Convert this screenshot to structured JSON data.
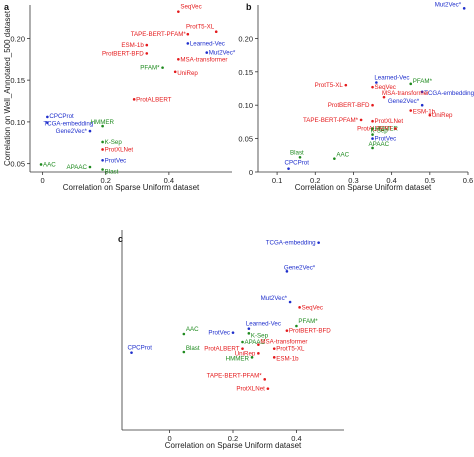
{
  "colors": {
    "red": "#e41a1c",
    "blue": "#1f2fcc",
    "green": "#1e8a1e",
    "axis": "#333333"
  },
  "chart_data": [
    {
      "panel": "a",
      "type": "scatter",
      "xlabel": "Correlation on Sparse Uniform dataset",
      "ylabel": "Correlation on Well_Annotated_500 dataset",
      "xlim": [
        -0.04,
        0.6
      ],
      "ylim": [
        0.04,
        0.24
      ],
      "xticks": [
        0,
        0.2,
        0.4
      ],
      "xtick_labels": [
        "0",
        "0.2",
        "0.4"
      ],
      "yticks": [
        0.05,
        0.1,
        0.15,
        0.2
      ],
      "ytick_labels": [
        "0.05",
        "0.10",
        "0.15",
        "0.20"
      ],
      "grid": false,
      "points": [
        {
          "label": "SeqVec",
          "x": 0.43,
          "y": 0.232,
          "color": "red"
        },
        {
          "label": "ProtT5-XL",
          "x": 0.55,
          "y": 0.208,
          "color": "red"
        },
        {
          "label": "TAPE-BERT-PFAM*",
          "x": 0.46,
          "y": 0.205,
          "color": "red"
        },
        {
          "label": "ESM-1b",
          "x": 0.33,
          "y": 0.192,
          "color": "red"
        },
        {
          "label": "Learned-Vec",
          "x": 0.46,
          "y": 0.194,
          "color": "blue"
        },
        {
          "label": "Mut2Vec*",
          "x": 0.52,
          "y": 0.183,
          "color": "blue"
        },
        {
          "label": "ProtBERT-BFD",
          "x": 0.33,
          "y": 0.182,
          "color": "red"
        },
        {
          "label": "MSA-transformer",
          "x": 0.43,
          "y": 0.175,
          "color": "red"
        },
        {
          "label": "PFAM*",
          "x": 0.38,
          "y": 0.165,
          "color": "green"
        },
        {
          "label": "UniRep",
          "x": 0.42,
          "y": 0.16,
          "color": "red"
        },
        {
          "label": "ProtALBERT",
          "x": 0.29,
          "y": 0.127,
          "color": "red"
        },
        {
          "label": "CPCProt",
          "x": 0.015,
          "y": 0.106,
          "color": "blue"
        },
        {
          "label": "TCGA-embedding",
          "x": 0.015,
          "y": 0.099,
          "color": "blue"
        },
        {
          "label": "HMMER",
          "x": 0.19,
          "y": 0.095,
          "color": "green"
        },
        {
          "label": "Gene2Vec*",
          "x": 0.15,
          "y": 0.089,
          "color": "blue"
        },
        {
          "label": "K-Sep",
          "x": 0.19,
          "y": 0.076,
          "color": "green"
        },
        {
          "label": "ProtXLNet",
          "x": 0.19,
          "y": 0.067,
          "color": "red"
        },
        {
          "label": "ProtVec",
          "x": 0.19,
          "y": 0.054,
          "color": "blue"
        },
        {
          "label": "AAC",
          "x": -0.005,
          "y": 0.049,
          "color": "green"
        },
        {
          "label": "APAAC",
          "x": 0.15,
          "y": 0.046,
          "color": "green"
        },
        {
          "label": "Blast",
          "x": 0.19,
          "y": 0.043,
          "color": "green"
        }
      ]
    },
    {
      "panel": "b",
      "type": "scatter",
      "xlabel": "Correlation on Sparse Uniform dataset",
      "ylabel": "",
      "xlim": [
        0.05,
        0.6
      ],
      "ylim": [
        0,
        0.25
      ],
      "xticks": [
        0.1,
        0.2,
        0.3,
        0.4,
        0.5,
        0.6
      ],
      "xtick_labels": [
        "0.1",
        "0.2",
        "0.3",
        "0.4",
        "0.5",
        "0.6"
      ],
      "yticks": [
        0,
        0.05,
        0.1,
        0.15,
        0.2
      ],
      "ytick_labels": [
        "0",
        "0.05",
        "0.10",
        "0.15",
        "0.20"
      ],
      "grid": false,
      "points": [
        {
          "label": "Mut2Vec*",
          "x": 0.59,
          "y": 0.245,
          "color": "blue"
        },
        {
          "label": "ProtT5-XL",
          "x": 0.28,
          "y": 0.13,
          "color": "red"
        },
        {
          "label": "SeqVec",
          "x": 0.35,
          "y": 0.127,
          "color": "red"
        },
        {
          "label": "Learned-Vec",
          "x": 0.36,
          "y": 0.134,
          "color": "blue"
        },
        {
          "label": "PFAM*",
          "x": 0.45,
          "y": 0.132,
          "color": "green"
        },
        {
          "label": "TCGA-embedding",
          "x": 0.48,
          "y": 0.12,
          "color": "blue"
        },
        {
          "label": "MSA-transformer",
          "x": 0.38,
          "y": 0.112,
          "color": "red"
        },
        {
          "label": "Gene2Vec*",
          "x": 0.48,
          "y": 0.1,
          "color": "blue"
        },
        {
          "label": "ProtBERT-BFD",
          "x": 0.35,
          "y": 0.1,
          "color": "red"
        },
        {
          "label": "ESM-1b",
          "x": 0.45,
          "y": 0.092,
          "color": "red"
        },
        {
          "label": "UniRep",
          "x": 0.5,
          "y": 0.085,
          "color": "red"
        },
        {
          "label": "TAPE-BERT-PFAM*",
          "x": 0.32,
          "y": 0.078,
          "color": "red"
        },
        {
          "label": "ProtXLNet",
          "x": 0.35,
          "y": 0.076,
          "color": "red"
        },
        {
          "label": "HMMER",
          "x": 0.35,
          "y": 0.065,
          "color": "green"
        },
        {
          "label": "ProtALBERT",
          "x": 0.41,
          "y": 0.065,
          "color": "red"
        },
        {
          "label": "K-Sep",
          "x": 0.35,
          "y": 0.056,
          "color": "green"
        },
        {
          "label": "ProtVec",
          "x": 0.35,
          "y": 0.05,
          "color": "blue"
        },
        {
          "label": "APAAC",
          "x": 0.35,
          "y": 0.036,
          "color": "green"
        },
        {
          "label": "Blast",
          "x": 0.16,
          "y": 0.022,
          "color": "green"
        },
        {
          "label": "AAC",
          "x": 0.25,
          "y": 0.02,
          "color": "green"
        },
        {
          "label": "CPCProt",
          "x": 0.13,
          "y": 0.005,
          "color": "blue"
        }
      ]
    },
    {
      "panel": "c",
      "type": "scatter",
      "xlabel": "Correlation on Sparse Uniform dataset",
      "ylabel": "",
      "xlim": [
        -0.15,
        0.55
      ],
      "ylim": [
        0.0,
        0.3
      ],
      "xticks": [
        0,
        0.2,
        0.4
      ],
      "xtick_labels": [
        "0",
        "0.2",
        "0.4"
      ],
      "yticks": [],
      "ytick_labels": [],
      "grid": false,
      "points": [
        {
          "label": "TCGA-embedding",
          "x": 0.47,
          "y": 0.281,
          "color": "blue"
        },
        {
          "label": "Gene2Vec*",
          "x": 0.37,
          "y": 0.238,
          "color": "blue"
        },
        {
          "label": "Mut2Vec*",
          "x": 0.38,
          "y": 0.192,
          "color": "blue"
        },
        {
          "label": "SeqVec",
          "x": 0.41,
          "y": 0.184,
          "color": "red"
        },
        {
          "label": "PFAM*",
          "x": 0.4,
          "y": 0.156,
          "color": "green"
        },
        {
          "label": "ProtBERT-BFD",
          "x": 0.37,
          "y": 0.149,
          "color": "red"
        },
        {
          "label": "Learned-Vec",
          "x": 0.25,
          "y": 0.152,
          "color": "blue"
        },
        {
          "label": "ProtVec",
          "x": 0.2,
          "y": 0.146,
          "color": "blue"
        },
        {
          "label": "K-Sep",
          "x": 0.25,
          "y": 0.145,
          "color": "green"
        },
        {
          "label": "AAC",
          "x": 0.045,
          "y": 0.144,
          "color": "green"
        },
        {
          "label": "APAAC",
          "x": 0.23,
          "y": 0.132,
          "color": "green"
        },
        {
          "label": "MSA-transformer",
          "x": 0.28,
          "y": 0.128,
          "color": "red"
        },
        {
          "label": "ProtALBERT",
          "x": 0.23,
          "y": 0.122,
          "color": "red"
        },
        {
          "label": "ProtT5-XL",
          "x": 0.33,
          "y": 0.122,
          "color": "red"
        },
        {
          "label": "UniRep",
          "x": 0.28,
          "y": 0.115,
          "color": "red"
        },
        {
          "label": "Blast",
          "x": 0.045,
          "y": 0.117,
          "color": "green"
        },
        {
          "label": "CPCProt",
          "x": -0.12,
          "y": 0.116,
          "color": "blue"
        },
        {
          "label": "HMMER",
          "x": 0.26,
          "y": 0.109,
          "color": "green"
        },
        {
          "label": "ESM-1b",
          "x": 0.33,
          "y": 0.109,
          "color": "red"
        },
        {
          "label": "TAPE-BERT-PFAM*",
          "x": 0.3,
          "y": 0.076,
          "color": "red"
        },
        {
          "label": "ProtXLNet",
          "x": 0.31,
          "y": 0.062,
          "color": "red"
        }
      ]
    }
  ]
}
